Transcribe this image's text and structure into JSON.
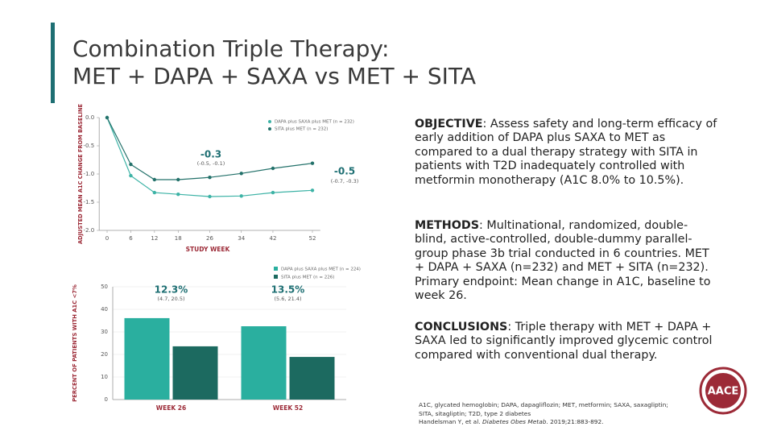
{
  "slide": {
    "title_lines": [
      "Combination Triple Therapy:",
      "MET + DAPA + SAXA vs MET + SITA"
    ],
    "logo": "AACE"
  },
  "chart_data": [
    {
      "type": "line",
      "y_label": "ADJUSTED MEAN A1C CHANGE FROM BASELINE",
      "x_label": "STUDY WEEK",
      "x": [
        0,
        6,
        12,
        18,
        26,
        34,
        42,
        52
      ],
      "xlim": [
        -2,
        54
      ],
      "xticks": [
        0,
        6,
        12,
        18,
        26,
        34,
        42,
        52
      ],
      "ylim": [
        -2.0,
        0.0
      ],
      "yticks": [
        {
          "value": 0,
          "label": "0.0"
        },
        -0.5,
        {
          "value": -1,
          "label": "-1.0"
        },
        -1.5,
        {
          "value": -2,
          "label": "-2.0"
        }
      ],
      "series": [
        {
          "name": "DAPA plus SAXA plus MET (n = 232)",
          "color": "#3db3a6",
          "values": [
            0,
            -1.03,
            -1.33,
            -1.36,
            -1.4,
            -1.39,
            -1.33,
            -1.29
          ]
        },
        {
          "name": "SITA plus MET (n = 232)",
          "color": "#23716a",
          "values": [
            0,
            -0.83,
            -1.1,
            -1.1,
            -1.06,
            -0.99,
            -0.9,
            -0.81
          ]
        }
      ],
      "annotations": [
        {
          "text": "-0.3",
          "ci": "(-0.5, -0.1)"
        },
        {
          "text": "-0.5",
          "ci": "(-0.7, -0.3)"
        }
      ]
    },
    {
      "type": "bar",
      "y_label": "PERCENT OF PATIENTS WITH A1C <7%",
      "categories": [
        "WEEK 26",
        "WEEK 52"
      ],
      "ylim": [
        0,
        50
      ],
      "yticks": [
        0,
        10,
        20,
        30,
        40,
        50
      ],
      "series": [
        {
          "name": "DAPA plus SAXA plus MET (n = 224)",
          "color": "#2aaf9f",
          "values": [
            36.1,
            32.5
          ]
        },
        {
          "name": "SITA plus MET (n = 226)",
          "color": "#1c6a60",
          "values": [
            23.6,
            18.9
          ]
        }
      ],
      "annotations": [
        {
          "text": "12.3%",
          "ci": "(4.7, 20.5)"
        },
        {
          "text": "13.5%",
          "ci": "(5.6, 21.4)"
        }
      ]
    }
  ],
  "sections": [
    {
      "label": "OBJECTIVE",
      "text": ": Assess safety and long-term efficacy of early addition of DAPA plus SAXA to MET as compared to a dual therapy strategy with SITA in patients with T2D inadequately controlled with metformin monotherapy (A1C 8.0% to 10.5%)."
    },
    {
      "label": "METHODS",
      "text": ": Multinational, randomized, double-blind, active-controlled, double-dummy parallel-group phase 3b trial conducted in 6 countries. MET + DAPA + SAXA (n=232) and MET + SITA (n=232). Primary endpoint: Mean change in A1C, baseline to week 26."
    },
    {
      "label": "CONCLUSIONS",
      "text": ": Triple therapy with MET + DAPA + SAXA led to significantly improved glycemic control compared with conventional dual therapy."
    }
  ],
  "footnote": {
    "abbrev": "A1C, glycated hemoglobin; DAPA, dapagliflozin; MET, metformin; SAXA, saxagliptin; SITA, sitagliptin; T2D, type 2 diabetes",
    "ref_authors": "Handelsman Y, et al. ",
    "ref_journal": "Diabetes Obes Metab",
    "ref_rest": ". 2019;21:883-892."
  }
}
